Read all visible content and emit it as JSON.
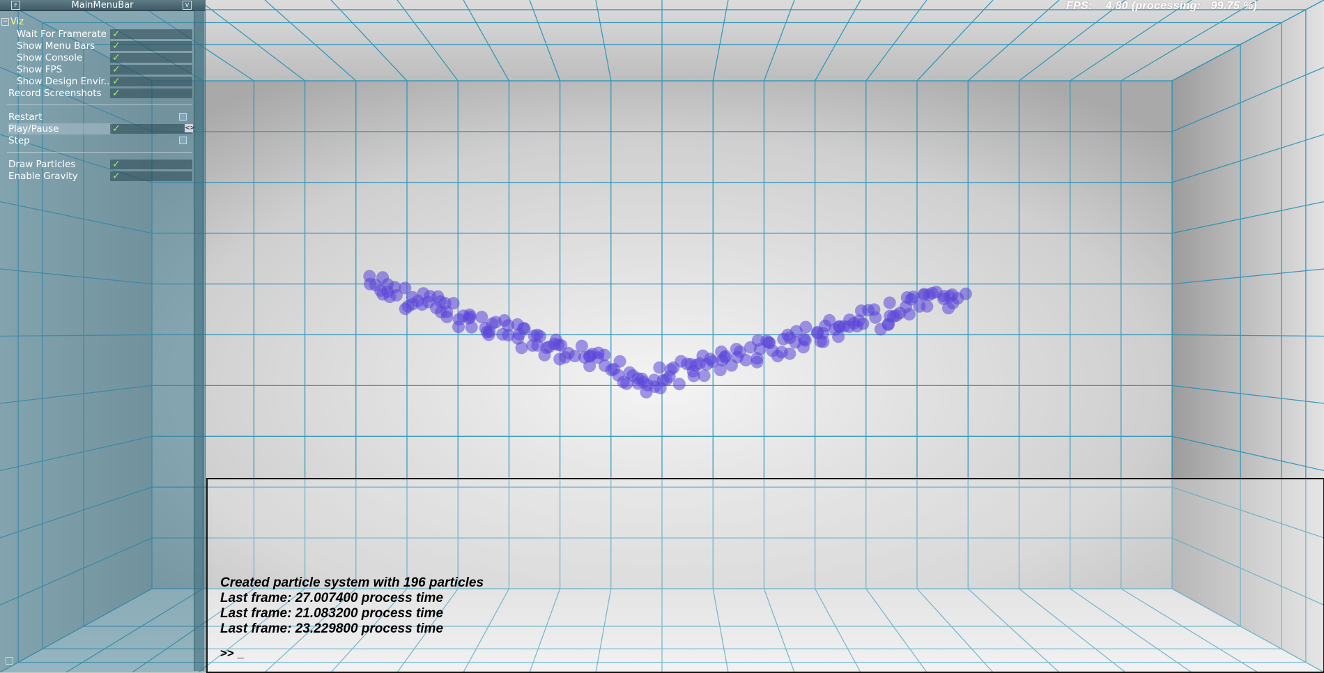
{
  "window": {
    "title": "MainMenuBar"
  },
  "menu": {
    "group_label": "Viz",
    "group_toggle": "−",
    "viz_items": [
      {
        "label": "Wait For Framerate",
        "checked": true
      },
      {
        "label": "Show Menu Bars",
        "checked": true
      },
      {
        "label": "Show Console",
        "checked": true
      },
      {
        "label": "Show FPS",
        "checked": true
      },
      {
        "label": "Show Design Envir..",
        "checked": true
      }
    ],
    "record_screenshots": {
      "label": "Record Screenshots",
      "checked": true
    },
    "restart": {
      "label": "Restart",
      "checked": false
    },
    "play_pause": {
      "label": "Play/Pause",
      "checked": true,
      "selected": true
    },
    "step": {
      "label": "Step",
      "checked": false
    },
    "draw_particles": {
      "label": "Draw Particles",
      "checked": true
    },
    "enable_gravity": {
      "label": "Enable Gravity",
      "checked": true
    },
    "check_glyph": "✓",
    "arrows_glyph": "<>"
  },
  "fps": {
    "text": "FPS:    4.80 (processing:   99.75 %)"
  },
  "console": {
    "lines": [
      "Created particle system with 196 particles",
      "Last frame: 27.007400 process time",
      "Last frame: 21.083200 process time",
      "Last frame: 23.229800 process time"
    ],
    "prompt": ">> _"
  },
  "colors": {
    "grid_line": "#1f8fb8",
    "particle": "#5a46d8",
    "wall_light": "#f0f0f0",
    "wall_dark": "#a8a8a8"
  }
}
